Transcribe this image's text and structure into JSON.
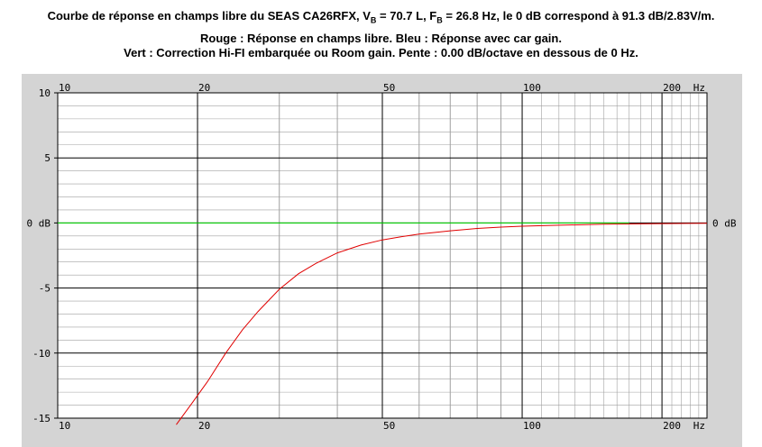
{
  "title": {
    "line1_prefix": "Courbe de réponse en champs libre du SEAS CA26RFX, V",
    "line1_vb_sub": "B",
    "line1_vb_value": " = 70.7 L, F",
    "line1_fb_sub": "B",
    "line1_suffix": " = 26.8 Hz, le 0 dB correspond à 91.3 dB/2.83V/m.",
    "line2": "Rouge : Réponse en champs libre. Bleu : Réponse avec car gain.",
    "line3": "Vert : Correction Hi-FI embarquée ou Room gain. Pente : 0.00 dB/octave en dessous de 0 Hz."
  },
  "colors": {
    "panel_bg": "#d4d4d4",
    "plot_bg": "#ffffff",
    "free_field": "#e00000",
    "car_gain": "#0000ff",
    "correction": "#00e000",
    "major_grid": "#000000",
    "minor_grid": "#a0a0a0"
  },
  "chart_data": {
    "type": "line",
    "x_scale": "log",
    "xlim": [
      10,
      250
    ],
    "ylim": [
      -15,
      10
    ],
    "x_ticks": [
      {
        "value": 10,
        "label": "10"
      },
      {
        "value": 20,
        "label": "20"
      },
      {
        "value": 50,
        "label": "50"
      },
      {
        "value": 100,
        "label": "100"
      },
      {
        "value": 200,
        "label": "200"
      }
    ],
    "x_unit_label": "Hz",
    "y_ticks": [
      {
        "value": 10,
        "label": "10"
      },
      {
        "value": 5,
        "label": "5"
      },
      {
        "value": 0,
        "label": "0 dB"
      },
      {
        "value": -5,
        "label": "-5"
      },
      {
        "value": -10,
        "label": "-10"
      },
      {
        "value": -15,
        "label": "-15"
      }
    ],
    "right_label": "0 dB",
    "grid": true,
    "series": [
      {
        "color": "#e00000",
        "x": [
          18.0,
          19.5,
          21,
          23,
          25,
          27,
          30,
          33,
          36,
          40,
          45,
          50,
          55,
          60,
          70,
          80,
          90,
          100,
          120,
          150,
          200,
          250
        ],
        "y": [
          -15.5,
          -13.8,
          -12.2,
          -10.0,
          -8.2,
          -6.8,
          -5.1,
          -3.9,
          -3.1,
          -2.3,
          -1.7,
          -1.3,
          -1.05,
          -0.85,
          -0.6,
          -0.42,
          -0.32,
          -0.25,
          -0.17,
          -0.1,
          -0.05,
          -0.03
        ]
      },
      {
        "color": "#00e000",
        "x": [
          10,
          170
        ],
        "y": [
          0,
          0
        ]
      }
    ]
  }
}
